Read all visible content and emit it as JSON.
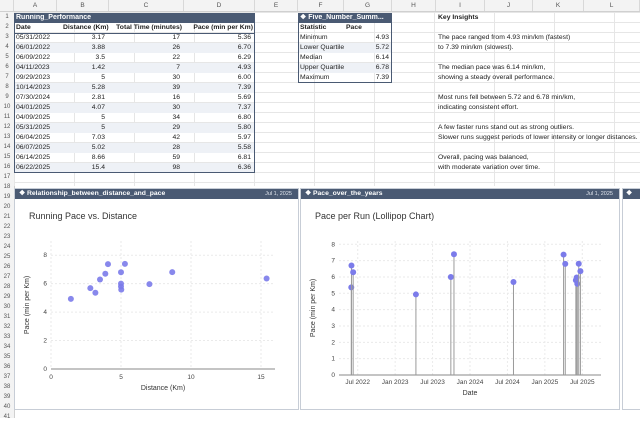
{
  "columns": [
    "A",
    "B",
    "C",
    "D",
    "E",
    "F",
    "G",
    "H",
    "I",
    "J",
    "K",
    "L"
  ],
  "rows": [
    "1",
    "2",
    "3",
    "4",
    "5",
    "6",
    "7",
    "8",
    "9",
    "10",
    "11",
    "12",
    "13",
    "14",
    "15",
    "16",
    "17",
    "18",
    "19",
    "20",
    "21",
    "22",
    "23",
    "24",
    "25",
    "26",
    "27",
    "28",
    "29",
    "30",
    "31",
    "32",
    "33",
    "34",
    "35",
    "36",
    "37",
    "38",
    "39",
    "40",
    "41"
  ],
  "running": {
    "title": "Running_Performance",
    "headers": [
      "Date",
      "Distance (Km)",
      "Total Time (minutes)",
      "Pace (min per Km)"
    ],
    "data": [
      [
        "05/31/2022",
        "3.17",
        "17",
        "5.36"
      ],
      [
        "06/01/2022",
        "3.88",
        "26",
        "6.70"
      ],
      [
        "06/09/2022",
        "3.5",
        "22",
        "6.29"
      ],
      [
        "04/11/2023",
        "1.42",
        "7",
        "4.93"
      ],
      [
        "09/29/2023",
        "5",
        "30",
        "6.00"
      ],
      [
        "10/14/2023",
        "5.28",
        "39",
        "7.39"
      ],
      [
        "07/30/2024",
        "2.81",
        "16",
        "5.69"
      ],
      [
        "04/01/2025",
        "4.07",
        "30",
        "7.37"
      ],
      [
        "04/09/2025",
        "5",
        "34",
        "6.80"
      ],
      [
        "05/31/2025",
        "5",
        "29",
        "5.80"
      ],
      [
        "06/04/2025",
        "7.03",
        "42",
        "5.97"
      ],
      [
        "06/07/2025",
        "5.02",
        "28",
        "5.58"
      ],
      [
        "06/14/2025",
        "8.66",
        "59",
        "6.81"
      ],
      [
        "06/22/2025",
        "15.4",
        "98",
        "6.36"
      ]
    ]
  },
  "fivenum": {
    "title": "Five_Number_Summ...",
    "headers": [
      "Statistic",
      "Pace"
    ],
    "data": [
      [
        "Minimum",
        "4.93"
      ],
      [
        "Lower Quartile",
        "5.72"
      ],
      [
        "Median",
        "6.14"
      ],
      [
        "Upper Quartile",
        "6.78"
      ],
      [
        "Maximum",
        "7.39"
      ]
    ]
  },
  "insights": {
    "title": "Key Insights",
    "lines": [
      "The pace ranged from 4.93 min/km (fastest)",
      "to 7.39 min/km (slowest).",
      "The median pace was 6.14 min/km,",
      "showing a steady overall performance.",
      "Most runs fell between 5.72 and 6.78 min/km,",
      "indicating consistent effort.",
      "A few faster runs stand out as strong outliers.",
      "Slower runs suggest periods of lower intensity or longer distances.",
      "Overall, pacing was balanced,",
      "with moderate variation over time."
    ]
  },
  "charts_meta": {
    "scatter_pane_title": "Relationship_between_distance_and_pace",
    "lollipop_pane_title": "Pace_over_the_years",
    "pane_date": "Jul 1, 2025"
  },
  "chart_data": [
    {
      "type": "scatter",
      "title": "Running Pace vs. Distance",
      "xlabel": "Distance (Km)",
      "ylabel": "Pace (min per Km)",
      "xlim": [
        0,
        16
      ],
      "ylim": [
        0,
        9
      ],
      "xticks": [
        "0",
        "5",
        "10",
        "15"
      ],
      "yticks": [
        "0",
        "2",
        "4",
        "6",
        "8"
      ],
      "x": [
        3.17,
        3.88,
        3.5,
        1.42,
        5,
        5.28,
        2.81,
        4.07,
        5,
        5,
        7.03,
        5.02,
        8.66,
        15.4
      ],
      "y": [
        5.36,
        6.7,
        6.29,
        4.93,
        6.0,
        7.39,
        5.69,
        7.37,
        6.8,
        5.8,
        5.97,
        5.58,
        6.81,
        6.36
      ],
      "color": "#7b7bea"
    },
    {
      "type": "lollipop",
      "title": "Pace per Run (Lollipop Chart)",
      "xlabel": "Date",
      "ylabel": "Pace (min per Km)",
      "ylim": [
        0,
        8.2
      ],
      "yticks": [
        "0",
        "1",
        "2",
        "3",
        "4",
        "5",
        "6",
        "7",
        "8"
      ],
      "xtick_labels": [
        "Jul 2022",
        "Jan 2023",
        "Jul 2023",
        "Jan 2024",
        "Jul 2024",
        "Jan 2025",
        "Jul 2025"
      ],
      "xtick_months": [
        6,
        12,
        18,
        24,
        30,
        36,
        42
      ],
      "months": [
        4.97,
        5.0,
        5.27,
        15.33,
        20.93,
        21.43,
        30.97,
        39.0,
        39.27,
        40.97,
        41.1,
        41.2,
        41.43,
        41.7
      ],
      "y": [
        5.36,
        6.7,
        6.29,
        4.93,
        6.0,
        7.39,
        5.69,
        7.37,
        6.8,
        5.8,
        5.97,
        5.58,
        6.81,
        6.36
      ],
      "color": "#7b7bea"
    }
  ]
}
